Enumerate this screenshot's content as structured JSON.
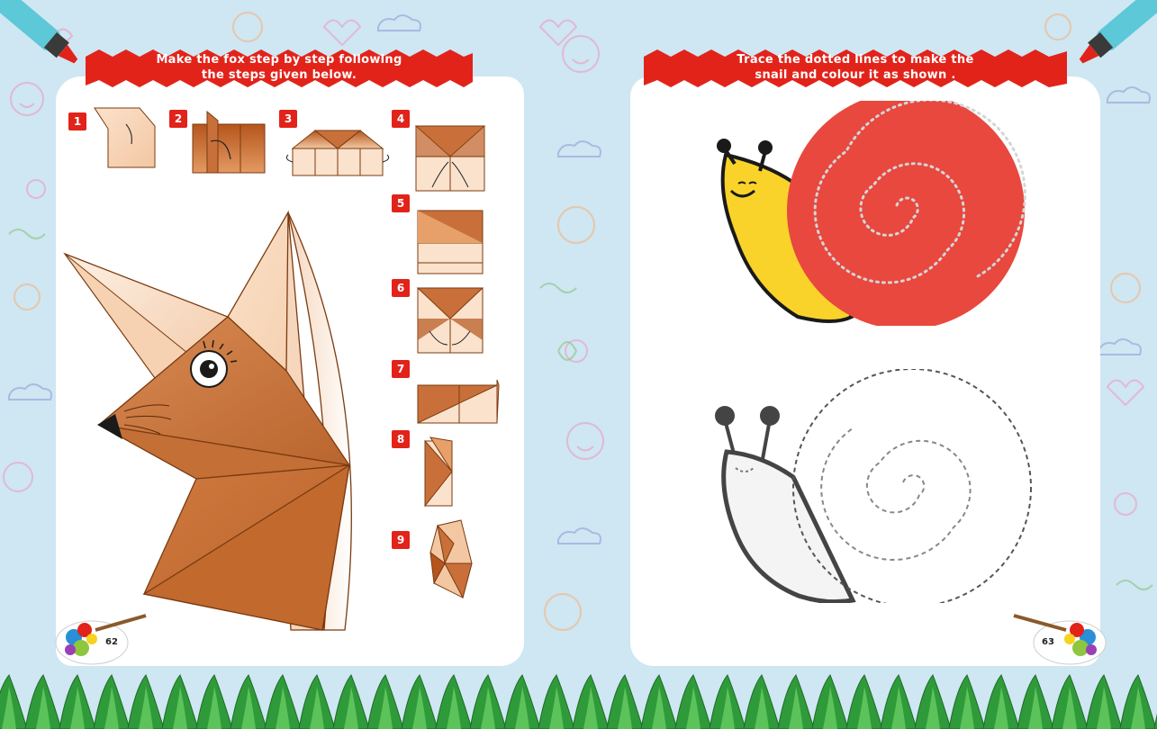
{
  "left_page": {
    "instruction": "Make the fox step by step following the steps given below.",
    "instruction_line1": "Make the fox step by step following",
    "instruction_line2": "the steps given below.",
    "steps": [
      "1",
      "2",
      "3",
      "4",
      "5",
      "6",
      "7",
      "8",
      "9"
    ],
    "page_number": "62"
  },
  "right_page": {
    "instruction_line1": "Trace the dotted lines to make the",
    "instruction_line2": "snail and colour it as shown .",
    "page_number": "63"
  },
  "colors": {
    "banner_red": "#e2231a",
    "fox_orange": "#c8743c",
    "fox_light": "#f8dcc4",
    "snail_shell": "#e8483e",
    "snail_body": "#fad32a",
    "background": "#cfe6f3"
  },
  "icons": [
    "marker-icon",
    "paint-palette-icon",
    "grass-border"
  ]
}
